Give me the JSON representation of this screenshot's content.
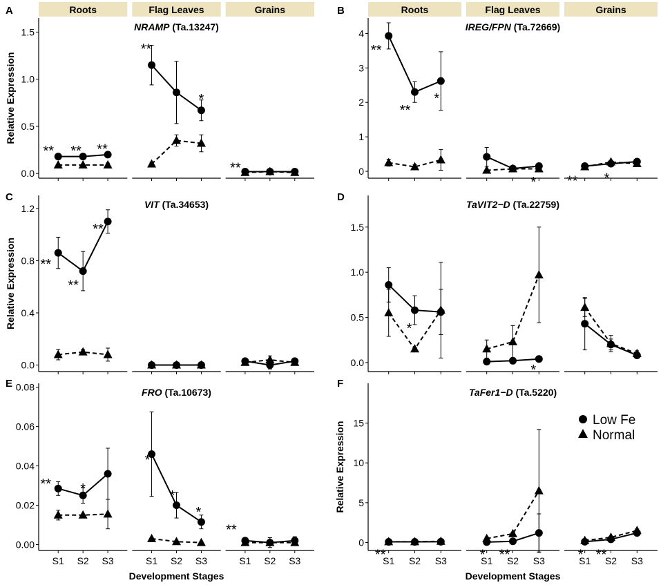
{
  "figure": {
    "strip_color": "#ede3bf",
    "line_color": "#000000",
    "legend": {
      "low_label": "Low Fe",
      "normal_label": "Normal",
      "low_marker": "circle",
      "normal_marker": "triangle"
    },
    "xlabel": "Development Stages"
  },
  "chart_data": [
    {
      "id": "A",
      "type": "line",
      "gene": "NRAMP",
      "accession": "(Ta.13247)",
      "facets": [
        "Roots",
        "Flag Leaves",
        "Grains"
      ],
      "categories": [
        "S1",
        "S2",
        "S3"
      ],
      "ylabel": "Relative Expression",
      "ylim": [
        -0.05,
        1.65
      ],
      "yticks": [
        0.0,
        0.5,
        1.0,
        1.5
      ],
      "yticklabels": [
        "0.0",
        "0.5",
        "1.0",
        "1.5"
      ],
      "series": [
        {
          "name": "Low Fe",
          "marker": "circle",
          "dash": "solid",
          "values": [
            [
              0.18,
              0.18,
              0.2
            ],
            [
              1.15,
              0.86,
              0.67
            ],
            [
              0.02,
              0.02,
              0.02
            ]
          ],
          "err": [
            [
              0.02,
              0.02,
              0.02
            ],
            [
              0.21,
              0.33,
              0.11
            ],
            [
              0.01,
              0.01,
              0.01
            ]
          ]
        },
        {
          "name": "Normal",
          "marker": "triangle",
          "dash": "dashed",
          "values": [
            [
              0.09,
              0.09,
              0.09
            ],
            [
              0.1,
              0.35,
              0.32
            ],
            [
              0.01,
              0.02,
              0.01
            ]
          ],
          "err": [
            [
              0.01,
              0.01,
              0.02
            ],
            [
              0.02,
              0.06,
              0.09
            ],
            [
              0.01,
              0.01,
              0.01
            ]
          ]
        }
      ],
      "significance": [
        {
          "facet": 0,
          "stage": 0,
          "label": "**",
          "value": 0.25,
          "dx": -14
        },
        {
          "facet": 0,
          "stage": 1,
          "label": "**",
          "value": 0.25,
          "dx": -10
        },
        {
          "facet": 0,
          "stage": 2,
          "label": "**",
          "value": 0.27,
          "dx": -8
        },
        {
          "facet": 1,
          "stage": 0,
          "label": "**",
          "value": 1.33,
          "dx": -8
        },
        {
          "facet": 1,
          "stage": 2,
          "label": "*",
          "value": 0.8,
          "dx": 0
        },
        {
          "facet": 2,
          "stage": 0,
          "label": "**",
          "value": 0.07,
          "dx": -14
        }
      ],
      "show_xticklabels": false,
      "show_xlabel": false
    },
    {
      "id": "B",
      "type": "line",
      "gene": "IREG/FPN",
      "accession": "(Ta.72669)",
      "facets": [
        "Roots",
        "Flag Leaves",
        "Grains"
      ],
      "categories": [
        "S1",
        "S2",
        "S3"
      ],
      "ylabel": "",
      "ylim": [
        -0.2,
        4.45
      ],
      "yticks": [
        0,
        1,
        2,
        3,
        4
      ],
      "yticklabels": [
        "0",
        "1",
        "2",
        "3",
        "4"
      ],
      "series": [
        {
          "name": "Low Fe",
          "marker": "circle",
          "dash": "solid",
          "values": [
            [
              3.93,
              2.3,
              2.62
            ],
            [
              0.42,
              0.08,
              0.15
            ],
            [
              0.15,
              0.22,
              0.28
            ]
          ],
          "err": [
            [
              0.38,
              0.3,
              0.85
            ],
            [
              0.27,
              0.04,
              0.06
            ],
            [
              0.04,
              0.06,
              0.05
            ]
          ]
        },
        {
          "name": "Normal",
          "marker": "triangle",
          "dash": "dashed",
          "values": [
            [
              0.25,
              0.13,
              0.33
            ],
            [
              0.03,
              0.07,
              0.07
            ],
            [
              0.13,
              0.27,
              0.22
            ]
          ],
          "err": [
            [
              0.1,
              0.06,
              0.3
            ],
            [
              0.02,
              0.03,
              0.03
            ],
            [
              0.03,
              0.05,
              0.05
            ]
          ]
        }
      ],
      "significance": [
        {
          "facet": 0,
          "stage": 0,
          "label": "**",
          "value": 3.55,
          "dx": -18
        },
        {
          "facet": 0,
          "stage": 1,
          "label": "**",
          "value": 1.8,
          "dx": -14
        },
        {
          "facet": 0,
          "stage": 2,
          "label": "*",
          "value": 2.15,
          "dx": -6
        },
        {
          "facet": 1,
          "stage": 2,
          "label": "*",
          "value": -0.28,
          "dx": -8
        },
        {
          "facet": 2,
          "stage": 0,
          "label": "**",
          "value": -0.25,
          "dx": -18
        },
        {
          "facet": 2,
          "stage": 1,
          "label": "*",
          "value": -0.17,
          "dx": -6
        }
      ],
      "show_xticklabels": false,
      "show_xlabel": false
    },
    {
      "id": "C",
      "type": "line",
      "gene": "VIT",
      "accession": "(Ta.34653)",
      "facets": [
        "Roots",
        "Flag Leaves",
        "Grains"
      ],
      "categories": [
        "S1",
        "S2",
        "S3"
      ],
      "ylabel": "Relative Expression",
      "ylim": [
        -0.05,
        1.3
      ],
      "yticks": [
        0.0,
        0.4,
        0.8,
        1.2
      ],
      "yticklabels": [
        "0.0",
        "0.4",
        "0.8",
        "1.2"
      ],
      "series": [
        {
          "name": "Low Fe",
          "marker": "circle",
          "dash": "solid",
          "values": [
            [
              0.86,
              0.72,
              1.1
            ],
            [
              0.0,
              0.0,
              0.0
            ],
            [
              0.03,
              0.0,
              0.03
            ]
          ],
          "err": [
            [
              0.12,
              0.15,
              0.09
            ],
            [
              0.01,
              0.01,
              0.01
            ],
            [
              0.02,
              0.03,
              0.02
            ]
          ]
        },
        {
          "name": "Normal",
          "marker": "triangle",
          "dash": "dashed",
          "values": [
            [
              0.08,
              0.1,
              0.08
            ],
            [
              0.0,
              0.0,
              0.0
            ],
            [
              0.02,
              0.04,
              0.02
            ]
          ],
          "err": [
            [
              0.04,
              0.02,
              0.05
            ],
            [
              0.01,
              0.01,
              0.01
            ],
            [
              0.02,
              0.03,
              0.02
            ]
          ]
        }
      ],
      "significance": [
        {
          "facet": 0,
          "stage": 0,
          "label": "**",
          "value": 0.78,
          "dx": -18
        },
        {
          "facet": 0,
          "stage": 1,
          "label": "**",
          "value": 0.62,
          "dx": -14
        },
        {
          "facet": 0,
          "stage": 2,
          "label": "**",
          "value": 1.05,
          "dx": -14
        }
      ],
      "show_xticklabels": false,
      "show_xlabel": false
    },
    {
      "id": "D",
      "type": "line",
      "gene": "TaVIT2−D",
      "accession": "(Ta.22759)",
      "facets": [
        "Roots",
        "Flag Leaves",
        "Grains"
      ],
      "categories": [
        "S1",
        "S2",
        "S3"
      ],
      "ylabel": "",
      "ylim": [
        -0.1,
        1.85
      ],
      "yticks": [
        0.0,
        0.5,
        1.0,
        1.5
      ],
      "yticklabels": [
        "0.0",
        "0.5",
        "1.0",
        "1.5"
      ],
      "series": [
        {
          "name": "Low Fe",
          "marker": "circle",
          "dash": "solid",
          "values": [
            [
              0.86,
              0.58,
              0.56
            ],
            [
              0.01,
              0.02,
              0.04
            ],
            [
              0.43,
              0.2,
              0.08
            ]
          ],
          "err": [
            [
              0.19,
              0.16,
              0.25
            ],
            [
              0.01,
              0.01,
              0.01
            ],
            [
              0.29,
              0.06,
              0.02
            ]
          ]
        },
        {
          "name": "Normal",
          "marker": "triangle",
          "dash": "dashed",
          "values": [
            [
              0.55,
              0.15,
              0.58
            ],
            [
              0.15,
              0.23,
              0.97
            ],
            [
              0.61,
              0.21,
              0.1
            ]
          ],
          "err": [
            [
              0.26,
              0.02,
              0.53
            ],
            [
              0.1,
              0.18,
              0.53
            ],
            [
              0.1,
              0.09,
              0.03
            ]
          ]
        }
      ],
      "significance": [
        {
          "facet": 0,
          "stage": 1,
          "label": "*",
          "value": 0.39,
          "dx": -8
        },
        {
          "facet": 1,
          "stage": 2,
          "label": "*",
          "value": -0.07,
          "dx": -8
        }
      ],
      "show_xticklabels": false,
      "show_xlabel": false
    },
    {
      "id": "E",
      "type": "line",
      "gene": "FRO",
      "accession": "(Ta.10673)",
      "facets": [
        "Roots",
        "Flag Leaves",
        "Grains"
      ],
      "categories": [
        "S1",
        "S2",
        "S3"
      ],
      "ylabel": "",
      "ylim": [
        -0.003,
        0.082
      ],
      "yticks": [
        0.0,
        0.02,
        0.04,
        0.06,
        0.08
      ],
      "yticklabels": [
        "0.00",
        "0.02",
        "0.04",
        "0.06",
        "0.08"
      ],
      "series": [
        {
          "name": "Low Fe",
          "marker": "circle",
          "dash": "solid",
          "values": [
            [
              0.0285,
              0.025,
              0.036
            ],
            [
              0.046,
              0.02,
              0.0115
            ],
            [
              0.002,
              0.001,
              0.002
            ]
          ],
          "err": [
            [
              0.0035,
              0.004,
              0.013
            ],
            [
              0.0215,
              0.0065,
              0.0035
            ],
            [
              0.001,
              0.0025,
              0.002
            ]
          ]
        },
        {
          "name": "Normal",
          "marker": "triangle",
          "dash": "dashed",
          "values": [
            [
              0.015,
              0.015,
              0.0155
            ],
            [
              0.003,
              0.0015,
              0.001
            ],
            [
              0.001,
              0.001,
              0.001
            ]
          ],
          "err": [
            [
              0.0025,
              0.0005,
              0.0075
            ],
            [
              0.0005,
              0.0005,
              0.0005
            ],
            [
              0.0005,
              0.0005,
              0.001
            ]
          ]
        }
      ],
      "significance": [
        {
          "facet": 0,
          "stage": 0,
          "label": "**",
          "value": 0.0315,
          "dx": -18
        },
        {
          "facet": 0,
          "stage": 1,
          "label": "*",
          "value": 0.029,
          "dx": 0
        },
        {
          "facet": 1,
          "stage": 0,
          "label": "*",
          "value": 0.0435,
          "dx": -6
        },
        {
          "facet": 1,
          "stage": 1,
          "label": "*",
          "value": 0.0255,
          "dx": -6
        },
        {
          "facet": 1,
          "stage": 2,
          "label": "*",
          "value": 0.017,
          "dx": -4
        },
        {
          "facet": 2,
          "stage": 0,
          "label": "**",
          "value": 0.008,
          "dx": -20
        }
      ],
      "show_xticklabels": true,
      "show_xlabel": true
    },
    {
      "id": "F",
      "type": "line",
      "gene": "TaFer1−D",
      "accession": "(Ta.5220)",
      "facets": [
        "Roots",
        "Flag Leaves",
        "Grains"
      ],
      "categories": [
        "S1",
        "S2",
        "S3"
      ],
      "ylabel": "Relative Expression",
      "ylim": [
        -1.0,
        20.0
      ],
      "yticks": [
        0,
        5,
        10,
        15
      ],
      "yticklabels": [
        "0",
        "5",
        "10",
        "15"
      ],
      "series": [
        {
          "name": "Low Fe",
          "marker": "circle",
          "dash": "solid",
          "values": [
            [
              0.08,
              0.08,
              0.1
            ],
            [
              0.05,
              0.15,
              1.2
            ],
            [
              0.1,
              0.4,
              1.2
            ]
          ],
          "err": [
            [
              0.1,
              0.1,
              0.1
            ],
            [
              0.05,
              0.1,
              2.4
            ],
            [
              0.1,
              0.1,
              0.2
            ]
          ]
        },
        {
          "name": "Normal",
          "marker": "triangle",
          "dash": "dashed",
          "values": [
            [
              0.1,
              0.1,
              0.15
            ],
            [
              0.5,
              1.1,
              6.5
            ],
            [
              0.25,
              0.65,
              1.5
            ]
          ],
          "err": [
            [
              0.1,
              0.1,
              0.1
            ],
            [
              0.2,
              0.2,
              7.7
            ],
            [
              0.1,
              0.1,
              0.2
            ]
          ]
        }
      ],
      "significance": [
        {
          "facet": 0,
          "stage": 0,
          "label": "**",
          "value": -1.4,
          "dx": -12
        },
        {
          "facet": 1,
          "stage": 0,
          "label": "*",
          "value": -1.4,
          "dx": -6
        },
        {
          "facet": 1,
          "stage": 1,
          "label": "**",
          "value": -1.4,
          "dx": -12
        },
        {
          "facet": 2,
          "stage": 0,
          "label": "*",
          "value": -1.4,
          "dx": -6
        },
        {
          "facet": 2,
          "stage": 1,
          "label": "**",
          "value": -1.4,
          "dx": -14
        }
      ],
      "show_xticklabels": true,
      "show_xlabel": true,
      "legend": true
    }
  ]
}
